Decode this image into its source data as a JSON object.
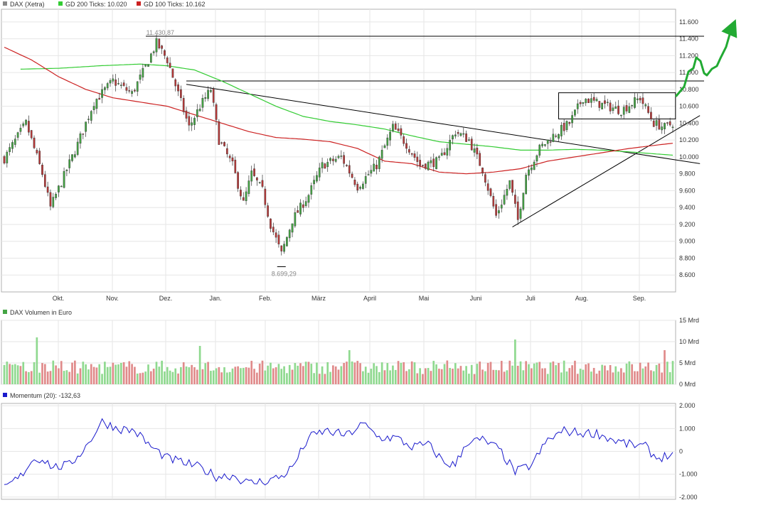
{
  "colors": {
    "grid": "#e6e6e6",
    "frame": "#b0b0b0",
    "up": "#44a544",
    "down": "#b83838",
    "ma200": "#33cc33",
    "ma100": "#cc2222",
    "volume_up": "#8fd98f",
    "volume_down": "#e08a8a",
    "momentum": "#1a1acc",
    "arrow": "#22aa33"
  },
  "chart_data": [
    {
      "type": "line",
      "legend": [
        {
          "name": "DAX (Xetra)",
          "color": "#888888"
        },
        {
          "name": "GD 200 Ticks: 10.020",
          "color": "#33cc33"
        },
        {
          "name": "GD 100 Ticks: 10.162",
          "color": "#cc2222"
        }
      ],
      "legend_placement": "top-left",
      "x_tick_labels": [
        "Okt.",
        "Nov.",
        "Dez.",
        "Jan.",
        "Feb.",
        "März",
        "April",
        "Mai",
        "Juni",
        "Juli",
        "Aug.",
        "Sep."
      ],
      "y_ticks": [
        8600,
        8800,
        9000,
        9200,
        9400,
        9600,
        9800,
        10000,
        10200,
        10400,
        10600,
        10800,
        11000,
        11200,
        11400,
        11600
      ],
      "y_tick_labels": [
        "8.600",
        "8.800",
        "9.000",
        "9.200",
        "9.400",
        "9.600",
        "9.800",
        "10.000",
        "10.200",
        "10.400",
        "10.600",
        "10.800",
        "11.000",
        "11.200",
        "11.400",
        "11.600"
      ],
      "ylim": [
        8400,
        11750
      ],
      "n_sessions": 247,
      "grid": true,
      "series": [
        {
          "name": "DAX (Xetra)",
          "kind": "candlestick",
          "anchors_close": [
            [
              0,
              9980
            ],
            [
              8,
              10400
            ],
            [
              14,
              9800
            ],
            [
              17,
              9400
            ],
            [
              21,
              9700
            ],
            [
              27,
              10150
            ],
            [
              33,
              10650
            ],
            [
              40,
              10900
            ],
            [
              47,
              10750
            ],
            [
              51,
              11000
            ],
            [
              56,
              11350
            ],
            [
              60,
              11150
            ],
            [
              64,
              10750
            ],
            [
              68,
              10350
            ],
            [
              72,
              10600
            ],
            [
              76,
              10800
            ],
            [
              79,
              10200
            ],
            [
              84,
              9900
            ],
            [
              88,
              9450
            ],
            [
              91,
              9800
            ],
            [
              95,
              9600
            ],
            [
              98,
              9200
            ],
            [
              102,
              8850
            ],
            [
              106,
              9250
            ],
            [
              112,
              9550
            ],
            [
              117,
              9900
            ],
            [
              124,
              10000
            ],
            [
              130,
              9650
            ],
            [
              137,
              9900
            ],
            [
              143,
              10350
            ],
            [
              148,
              10150
            ],
            [
              153,
              9900
            ],
            [
              160,
              9950
            ],
            [
              166,
              10300
            ],
            [
              171,
              10200
            ],
            [
              176,
              9850
            ],
            [
              181,
              9300
            ],
            [
              186,
              9700
            ],
            [
              189,
              9250
            ],
            [
              192,
              9800
            ],
            [
              197,
              10100
            ],
            [
              202,
              10250
            ],
            [
              208,
              10400
            ],
            [
              213,
              10700
            ],
            [
              217,
              10650
            ],
            [
              222,
              10600
            ],
            [
              227,
              10550
            ],
            [
              234,
              10700
            ],
            [
              239,
              10400
            ],
            [
              243,
              10350
            ],
            [
              246,
              10400
            ]
          ],
          "annotations": [
            {
              "label": "11.430,87",
              "session": 58,
              "value": 11430
            },
            {
              "label": "8.699,29",
              "session": 102,
              "value": 8699
            }
          ]
        },
        {
          "name": "GD 200 Ticks: 10.020",
          "anchors": [
            [
              6,
              11040
            ],
            [
              20,
              11050
            ],
            [
              35,
              11080
            ],
            [
              50,
              11100
            ],
            [
              60,
              11080
            ],
            [
              70,
              11030
            ],
            [
              80,
              10900
            ],
            [
              90,
              10750
            ],
            [
              100,
              10600
            ],
            [
              110,
              10480
            ],
            [
              120,
              10420
            ],
            [
              130,
              10380
            ],
            [
              140,
              10330
            ],
            [
              150,
              10250
            ],
            [
              160,
              10180
            ],
            [
              170,
              10150
            ],
            [
              180,
              10120
            ],
            [
              190,
              10080
            ],
            [
              200,
              10080
            ],
            [
              210,
              10090
            ],
            [
              220,
              10080
            ],
            [
              230,
              10060
            ],
            [
              240,
              10035
            ],
            [
              246,
              10020
            ]
          ]
        },
        {
          "name": "GD 100 Ticks: 10.162",
          "anchors": [
            [
              0,
              11300
            ],
            [
              10,
              11150
            ],
            [
              20,
              10950
            ],
            [
              30,
              10800
            ],
            [
              40,
              10700
            ],
            [
              50,
              10650
            ],
            [
              60,
              10600
            ],
            [
              70,
              10500
            ],
            [
              80,
              10400
            ],
            [
              90,
              10300
            ],
            [
              100,
              10230
            ],
            [
              110,
              10210
            ],
            [
              120,
              10180
            ],
            [
              130,
              10100
            ],
            [
              140,
              9950
            ],
            [
              150,
              9920
            ],
            [
              160,
              9820
            ],
            [
              170,
              9800
            ],
            [
              180,
              9820
            ],
            [
              190,
              9860
            ],
            [
              200,
              9950
            ],
            [
              210,
              10000
            ],
            [
              220,
              10050
            ],
            [
              230,
              10100
            ],
            [
              240,
              10140
            ],
            [
              246,
              10162
            ]
          ]
        }
      ],
      "horizontal_lines": [
        11430,
        10900
      ],
      "trend_lines": [
        {
          "from": [
            67,
            10860
          ],
          "to": [
            256,
            9920
          ]
        },
        {
          "from": [
            187,
            9170
          ],
          "to": [
            256,
            10490
          ]
        }
      ],
      "box": {
        "x0": 204,
        "x1": 247,
        "y_low": 10450,
        "y_high": 10760
      }
    },
    {
      "type": "bar",
      "title": "DAX Volumen in Euro",
      "y_ticks": [
        0,
        5,
        10,
        15
      ],
      "y_tick_labels": [
        "0 Mrd",
        "5 Mrd",
        "10 Mrd",
        "15 Mrd"
      ],
      "ylim": [
        0,
        15
      ],
      "typical_value": 4,
      "spikes": [
        [
          12,
          11
        ],
        [
          72,
          9
        ],
        [
          127,
          8
        ],
        [
          188,
          10.5
        ],
        [
          183,
          5.5
        ],
        [
          243,
          8
        ]
      ]
    },
    {
      "type": "line",
      "title": "Momentum (20): -132,63",
      "legend": [
        {
          "name": "Momentum (20): -132,63",
          "color": "#1a1acc"
        }
      ],
      "y_ticks": [
        -2000,
        -1000,
        0,
        1000,
        2000
      ],
      "y_tick_labels": [
        "-2.000",
        "-1.000",
        "0",
        "1.000",
        "2.000"
      ],
      "ylim": [
        -2100,
        2100
      ],
      "series": [
        {
          "name": "Momentum (20): -132,63",
          "anchors": [
            [
              0,
              -1600
            ],
            [
              6,
              -1100
            ],
            [
              10,
              -400
            ],
            [
              14,
              -300
            ],
            [
              18,
              -700
            ],
            [
              24,
              -600
            ],
            [
              30,
              200
            ],
            [
              36,
              1300
            ],
            [
              42,
              1000
            ],
            [
              48,
              900
            ],
            [
              54,
              200
            ],
            [
              60,
              -300
            ],
            [
              66,
              -500
            ],
            [
              72,
              -700
            ],
            [
              78,
              -1100
            ],
            [
              84,
              -1050
            ],
            [
              90,
              -1400
            ],
            [
              96,
              -1300
            ],
            [
              102,
              -1100
            ],
            [
              106,
              -700
            ],
            [
              112,
              600
            ],
            [
              118,
              900
            ],
            [
              126,
              700
            ],
            [
              132,
              1200
            ],
            [
              138,
              600
            ],
            [
              144,
              600
            ],
            [
              150,
              200
            ],
            [
              156,
              300
            ],
            [
              162,
              -500
            ],
            [
              166,
              -600
            ],
            [
              170,
              400
            ],
            [
              176,
              500
            ],
            [
              182,
              100
            ],
            [
              188,
              -900
            ],
            [
              194,
              -600
            ],
            [
              200,
              500
            ],
            [
              206,
              900
            ],
            [
              212,
              800
            ],
            [
              218,
              800
            ],
            [
              224,
              500
            ],
            [
              230,
              300
            ],
            [
              236,
              200
            ],
            [
              240,
              -300
            ],
            [
              246,
              -132
            ]
          ]
        }
      ]
    }
  ]
}
